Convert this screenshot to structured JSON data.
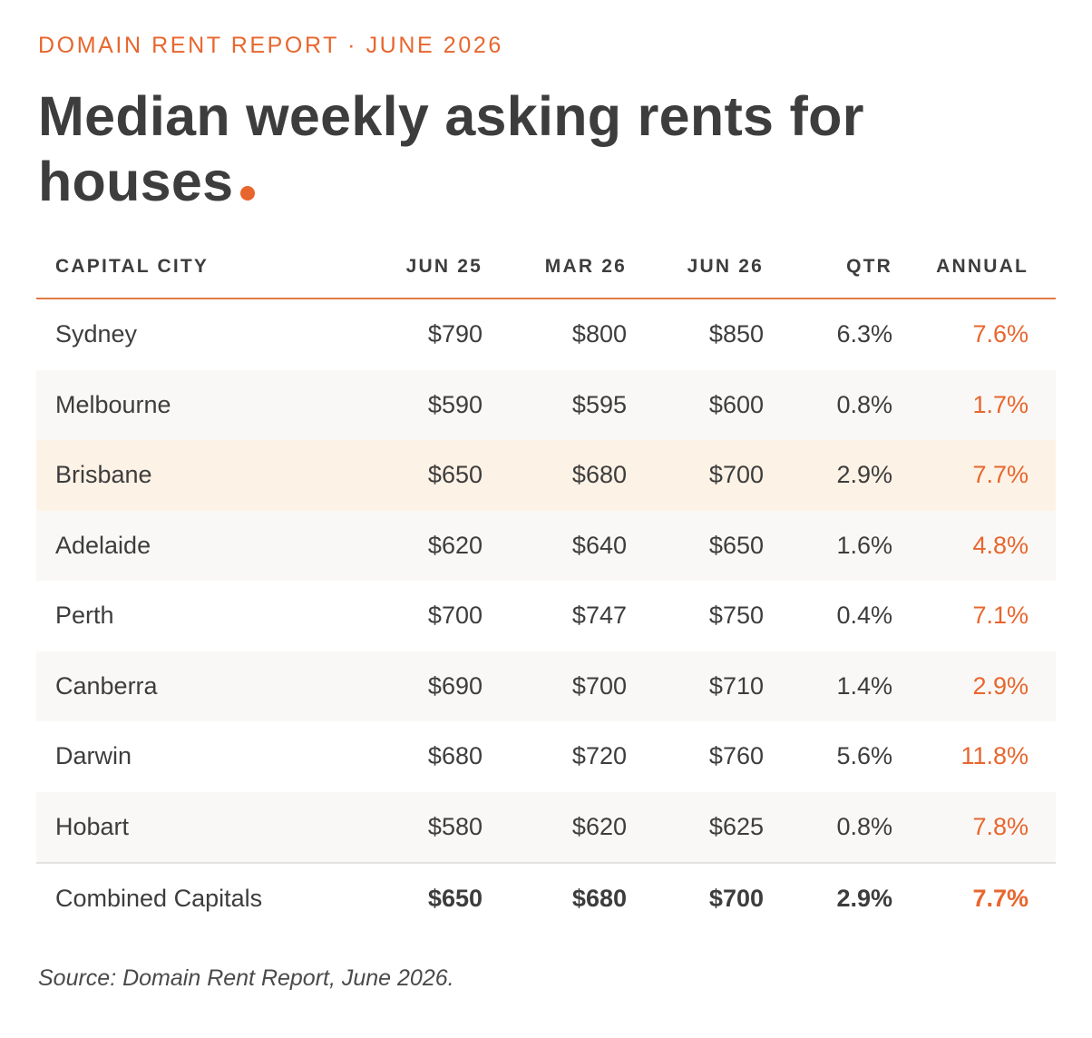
{
  "kicker": "DOMAIN RENT REPORT · JUNE 2026",
  "title": "Median weekly asking rents for houses",
  "source": "Source: Domain Rent Report, June 2026.",
  "colors": {
    "accent": "#e8662d",
    "text": "#3d3d3d",
    "row_shade": "#f9f8f6",
    "row_highlight": "#fdf2e6"
  },
  "chart_data": {
    "type": "table",
    "title": "Median weekly asking rents for houses",
    "columns": [
      "CAPITAL CITY",
      "JUN 25",
      "MAR 26",
      "JUN 26",
      "QTR",
      "ANNUAL"
    ],
    "rows": [
      {
        "city": "Sydney",
        "jun25": "$790",
        "mar26": "$800",
        "jun26": "$850",
        "qtr": "6.3%",
        "annual": "7.6%"
      },
      {
        "city": "Melbourne",
        "jun25": "$590",
        "mar26": "$595",
        "jun26": "$600",
        "qtr": "0.8%",
        "annual": "1.7%"
      },
      {
        "city": "Brisbane",
        "jun25": "$650",
        "mar26": "$680",
        "jun26": "$700",
        "qtr": "2.9%",
        "annual": "7.7%",
        "highlighted": true
      },
      {
        "city": "Adelaide",
        "jun25": "$620",
        "mar26": "$640",
        "jun26": "$650",
        "qtr": "1.6%",
        "annual": "4.8%"
      },
      {
        "city": "Perth",
        "jun25": "$700",
        "mar26": "$747",
        "jun26": "$750",
        "qtr": "0.4%",
        "annual": "7.1%"
      },
      {
        "city": "Canberra",
        "jun25": "$690",
        "mar26": "$700",
        "jun26": "$710",
        "qtr": "1.4%",
        "annual": "2.9%"
      },
      {
        "city": "Darwin",
        "jun25": "$680",
        "mar26": "$720",
        "jun26": "$760",
        "qtr": "5.6%",
        "annual": "11.8%"
      },
      {
        "city": "Hobart",
        "jun25": "$580",
        "mar26": "$620",
        "jun26": "$625",
        "qtr": "0.8%",
        "annual": "7.8%"
      }
    ],
    "total": {
      "city": "Combined Capitals",
      "jun25": "$650",
      "mar26": "$680",
      "jun26": "$700",
      "qtr": "2.9%",
      "annual": "7.7%"
    }
  }
}
